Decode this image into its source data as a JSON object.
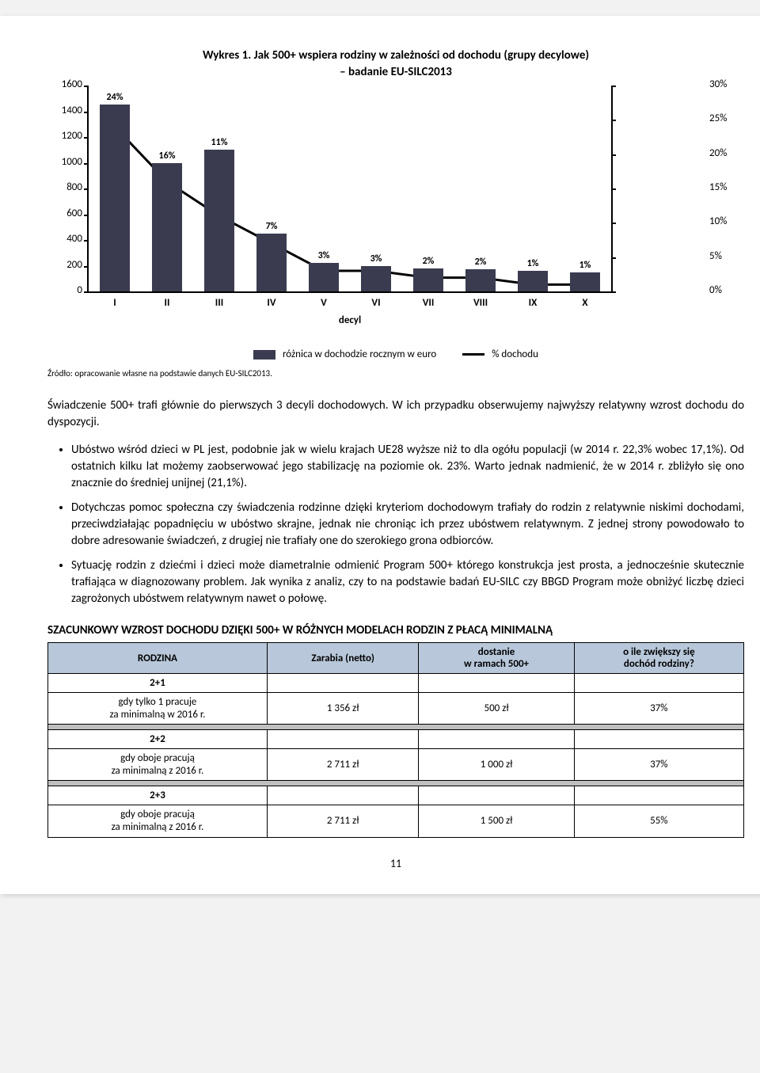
{
  "chart": {
    "title_line1": "Wykres 1. Jak 500+ wspiera rodziny w zależności od dochodu (grupy decylowe)",
    "title_line2": "– badanie EU-SILC2013",
    "type": "bar+line",
    "categories": [
      "I",
      "II",
      "III",
      "IV",
      "V",
      "VI",
      "VII",
      "VIII",
      "IX",
      "X"
    ],
    "bar_values": [
      1450,
      1000,
      1100,
      450,
      220,
      200,
      180,
      170,
      160,
      150
    ],
    "bar_labels": [
      "24%",
      "16%",
      "11%",
      "7%",
      "3%",
      "3%",
      "2%",
      "2%",
      "1%",
      "1%"
    ],
    "line_values_pct": [
      24,
      16,
      11,
      7,
      3,
      3,
      2,
      2,
      1,
      1
    ],
    "left_axis": {
      "min": 0,
      "max": 1600,
      "step": 200
    },
    "right_axis": {
      "min": 0,
      "max": 30,
      "step": 5,
      "suffix": "%"
    },
    "xaxis_title": "decyl",
    "bar_color": "#3b3b50",
    "line_color": "#000000",
    "legend_bar": "różnica w dochodzie rocznym w euro",
    "legend_line": "% dochodu"
  },
  "source": "Źródło: opracowanie własne na podstawie danych EU-SILC2013.",
  "para1": "Świadczenie 500+ trafi głównie do pierwszych 3 decyli dochodowych. W ich przypadku obserwujemy najwyższy relatywny wzrost dochodu do dyspozycji.",
  "bullets": [
    "Ubóstwo wśród dzieci w PL jest, podobnie jak w wielu krajach UE28 wyższe niż to dla ogółu populacji (w 2014 r. 22,3% wobec 17,1%). Od ostatnich kilku lat możemy zaobserwować jego stabilizację na poziomie ok. 23%. Warto jednak nadmienić, że w 2014 r. zbliżyło się ono znacznie do średniej unijnej (21,1%).",
    "Dotychczas pomoc społeczna czy świadczenia rodzinne dzięki kryteriom dochodowym trafiały do rodzin z relatywnie niskimi dochodami, przeciwdziałając popadnięciu w ubóstwo skrajne, jednak nie chroniąc ich przez ubóstwem relatywnym. Z jednej strony powodowało to dobre adresowanie świadczeń, z drugiej nie trafiały one do szerokiego grona odbiorców.",
    "Sytuację rodzin z dziećmi i dzieci może diametralnie odmienić Program 500+ którego konstrukcja jest prosta, a jednocześnie skutecznie trafiająca w diagnozowany problem. Jak wynika z analiz, czy to na podstawie badań EU-SILC czy BBGD Program może obniżyć liczbę dzieci zagrożonych ubóstwem relatywnym nawet o połowę."
  ],
  "section_head": "SZACUNKOWY WZROST DOCHODU DZIĘKI 500+ W RÓŻNYCH MODELACH RODZIN Z PŁACĄ MINIMALNĄ",
  "table": {
    "headers": [
      "RODZINA",
      "Zarabia (netto)",
      "dostanie\nw ramach 500+",
      "o ile zwiększy się\ndochód rodziny?"
    ],
    "groups": [
      {
        "label": "2+1",
        "desc": "gdy tylko 1 pracuje\nza minimalną w 2016 r.",
        "earn": "1 356 zł",
        "get": "500 zł",
        "inc": "37%"
      },
      {
        "label": "2+2",
        "desc": "gdy oboje pracują\nza minimalną z 2016 r.",
        "earn": "2 711 zł",
        "get": "1 000 zł",
        "inc": "37%"
      },
      {
        "label": "2+3",
        "desc": "gdy oboje pracują\nza minimalną z 2016 r.",
        "earn": "2 711 zł",
        "get": "1 500 zł",
        "inc": "55%"
      }
    ]
  },
  "page_number": "11"
}
